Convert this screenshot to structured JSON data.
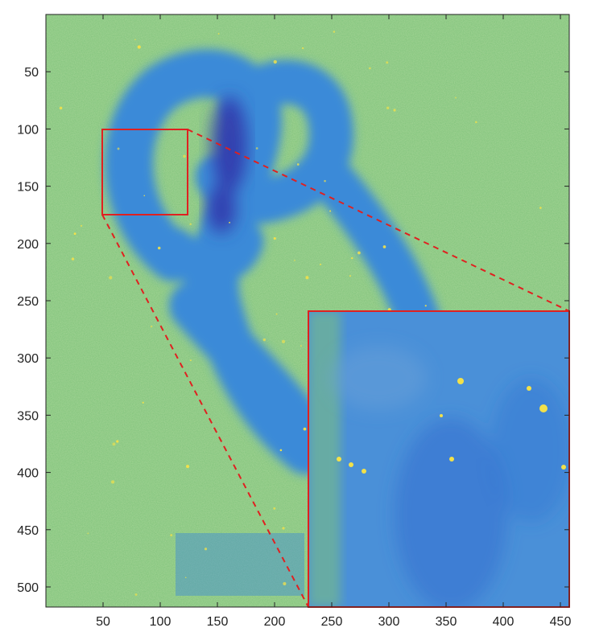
{
  "colors": {
    "background_field": "#7fc27a",
    "background_noise_a": "#5fb89a",
    "background_noise_b": "#a8c860",
    "knot_outer": "#3b8ad8",
    "knot_inner": "#2f6cd0",
    "knot_dark": "#3040b0",
    "inset_field": "#4a90d8",
    "speckle": "#f2e14a",
    "highlight": "#e02020",
    "axis": "#222222"
  },
  "axes": {
    "x_ticks": [
      "50",
      "100",
      "150",
      "200",
      "250",
      "300",
      "350",
      "400",
      "450"
    ],
    "y_ticks": [
      "50",
      "100",
      "150",
      "200",
      "250",
      "300",
      "350",
      "400",
      "450",
      "500"
    ]
  },
  "icons": {
    "zoom_box": "red-rectangle",
    "zoom_lines": "red-dashed-line"
  }
}
